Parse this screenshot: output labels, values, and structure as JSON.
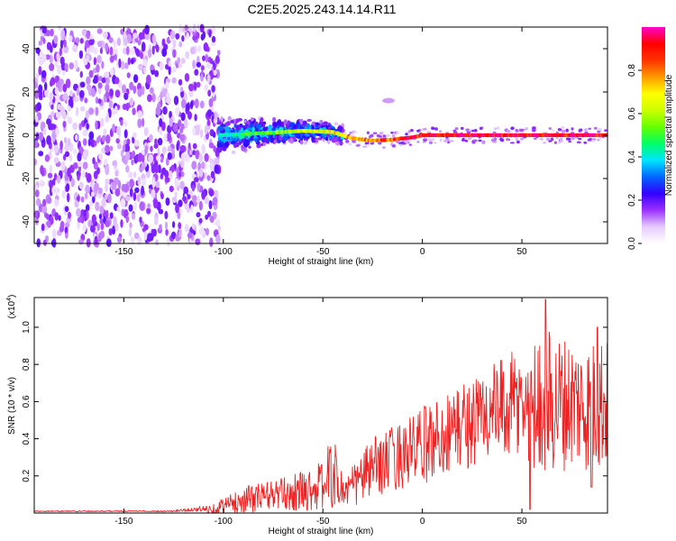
{
  "chart_data": [
    {
      "type": "heatmap",
      "title": "C2E5.2025.243.14.14.R11",
      "xlabel": "Height of straight line (km)",
      "ylabel": "Frequency (Hz)",
      "xlim": [
        -195,
        93
      ],
      "ylim": [
        -50,
        50
      ],
      "xticks": [
        -150,
        -100,
        -50,
        0,
        50
      ],
      "yticks": [
        -40,
        -20,
        0,
        20,
        40
      ],
      "colorbar": {
        "label": "Normalized spectral amplitude",
        "range": [
          0,
          1
        ],
        "ticks": [
          0.0,
          0.2,
          0.4,
          0.6,
          0.8
        ],
        "tick_labels": [
          "0.0",
          "0.2",
          "0.4",
          "0.6",
          "0.8"
        ],
        "colormap": [
          "#ffffff",
          "#e6ccff",
          "#9b30ff",
          "#3300ff",
          "#0066ff",
          "#00e5ff",
          "#00ff66",
          "#66ff00",
          "#ccff00",
          "#ffff00",
          "#ff9900",
          "#ff3300",
          "#ff0000",
          "#ff00cc"
        ]
      },
      "features": {
        "noise_region_x": [
          -195,
          -102
        ],
        "noise_amplitude": 0.2,
        "spread_region_x": [
          -102,
          -40
        ],
        "spread_halfwidth_hz": 7,
        "spread_amplitude": 0.45,
        "tone_line": {
          "points_x": [
            -102,
            -80,
            -60,
            -45,
            -35,
            -25,
            -15,
            -5,
            0,
            93
          ],
          "points_freq_hz": [
            0,
            1,
            2,
            1.5,
            -1.5,
            -2.5,
            -2,
            -1,
            0,
            0
          ],
          "amplitude_start": 0.4,
          "amplitude_end": 0.95
        },
        "spot": {
          "x": -17,
          "freq_hz": 16,
          "amplitude": 0.1
        }
      }
    },
    {
      "type": "line",
      "xlabel": "Height of straight line (km)",
      "ylabel": "SNR (10 * v/v)",
      "y_multiplier": "(x10^4)",
      "y_multiplier_base": "(x10",
      "y_multiplier_exp": "4",
      "y_multiplier_close": ")",
      "xlim": [
        -195,
        93
      ],
      "ylim": [
        0,
        1.16
      ],
      "xticks": [
        -150,
        -100,
        -50,
        0,
        50
      ],
      "yticks": [
        0.2,
        0.4,
        0.6,
        0.8,
        1.0
      ],
      "color": "#ee2222",
      "series": [
        {
          "x": [
            -195,
            -180,
            -160,
            -140,
            -125,
            -115,
            -110,
            -105,
            -100,
            -95,
            -90,
            -85,
            -80,
            -75,
            -70,
            -65,
            -60,
            -55,
            -50,
            -47,
            -45,
            -42,
            -40,
            -35,
            -30,
            -25,
            -20,
            -15,
            -10,
            -5,
            0,
            5,
            10,
            15,
            20,
            25,
            30,
            35,
            40,
            45,
            50,
            55,
            60,
            65,
            70,
            75,
            80,
            85,
            90,
            93
          ],
          "y_mean": [
            0.01,
            0.01,
            0.01,
            0.01,
            0.01,
            0.02,
            0.02,
            0.02,
            0.04,
            0.05,
            0.07,
            0.08,
            0.09,
            0.1,
            0.1,
            0.11,
            0.12,
            0.13,
            0.15,
            0.2,
            0.22,
            0.16,
            0.12,
            0.14,
            0.2,
            0.24,
            0.27,
            0.29,
            0.32,
            0.33,
            0.36,
            0.39,
            0.42,
            0.45,
            0.47,
            0.49,
            0.52,
            0.54,
            0.55,
            0.57,
            0.58,
            0.58,
            0.6,
            0.6,
            0.59,
            0.6,
            0.58,
            0.57,
            0.6,
            0.58
          ],
          "y_amplitude": [
            0.003,
            0.003,
            0.003,
            0.003,
            0.005,
            0.01,
            0.02,
            0.03,
            0.05,
            0.06,
            0.07,
            0.08,
            0.08,
            0.08,
            0.09,
            0.1,
            0.11,
            0.12,
            0.14,
            0.18,
            0.2,
            0.14,
            0.1,
            0.12,
            0.15,
            0.16,
            0.17,
            0.18,
            0.19,
            0.2,
            0.21,
            0.22,
            0.22,
            0.23,
            0.24,
            0.25,
            0.26,
            0.27,
            0.28,
            0.3,
            0.32,
            0.34,
            0.38,
            0.4,
            0.37,
            0.36,
            0.35,
            0.36,
            0.38,
            0.35
          ]
        }
      ],
      "peaks": [
        {
          "x": 62,
          "y": 1.15
        },
        {
          "x": 88,
          "y": 1.0
        }
      ],
      "dips": [
        {
          "x": 54,
          "y": 0.02
        },
        {
          "x": 85,
          "y": 0.14
        }
      ]
    }
  ]
}
